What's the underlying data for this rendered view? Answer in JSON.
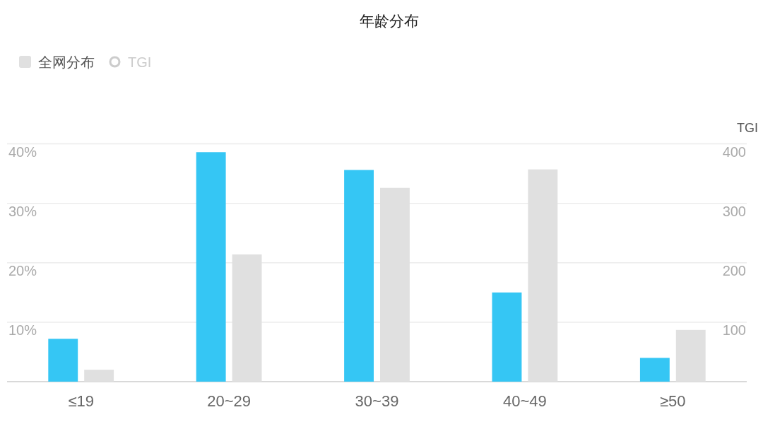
{
  "chart_data": {
    "type": "bar",
    "title": "年龄分布",
    "categories": [
      "≤19",
      "20~29",
      "30~39",
      "40~49",
      "≥50"
    ],
    "series": [
      {
        "color": "#35c6f4",
        "values": [
          7.2,
          38.6,
          35.6,
          15.0,
          4.0
        ]
      },
      {
        "name": "全网分布",
        "color": "#e0e0e0",
        "values": [
          2.0,
          21.4,
          32.6,
          35.7,
          8.7
        ]
      },
      {
        "name": "TGI",
        "type": "line",
        "axis": "y2",
        "marker": "circle",
        "color": "#cccccc",
        "values": [
          null,
          null,
          null,
          null,
          null
        ]
      }
    ],
    "ylim": [
      0,
      40
    ],
    "yticks": [
      {
        "value": 10,
        "label": "10%"
      },
      {
        "value": 20,
        "label": "20%"
      },
      {
        "value": 30,
        "label": "30%"
      },
      {
        "value": 40,
        "label": "40%"
      }
    ],
    "y2label": "TGI",
    "y2lim": [
      0,
      400
    ],
    "y2ticks": [
      100,
      200,
      300,
      400
    ],
    "grid": "y",
    "legend": "top left"
  }
}
